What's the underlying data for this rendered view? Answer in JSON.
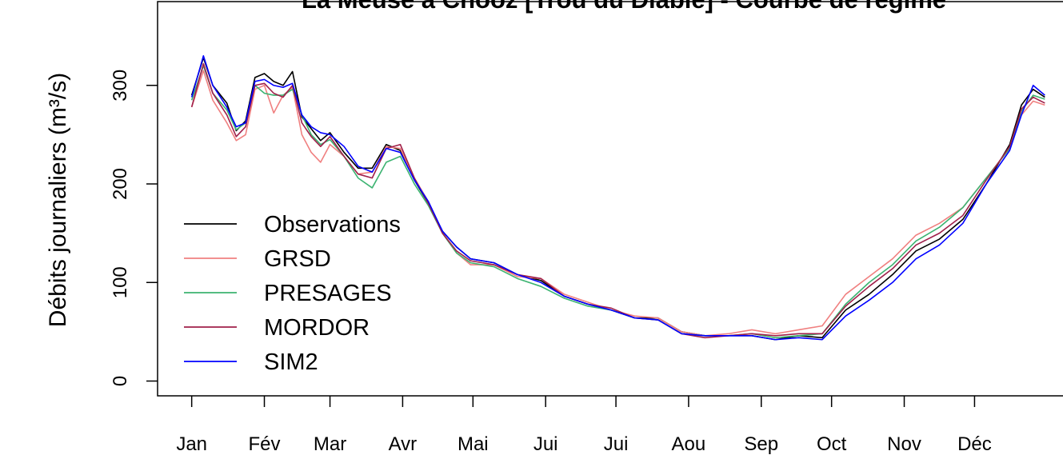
{
  "chart_data": {
    "type": "line",
    "title": "La Meuse à Chooz [Trou du Diable] - Courbe de régime",
    "y_label": "Débits journaliers (m³/s)",
    "x": [
      1,
      6,
      10,
      16,
      20,
      24,
      28,
      32,
      36,
      40,
      44,
      48,
      52,
      56,
      60,
      66,
      72,
      78,
      84,
      90,
      96,
      102,
      108,
      114,
      120,
      130,
      140,
      150,
      160,
      170,
      180,
      190,
      200,
      210,
      220,
      230,
      240,
      250,
      260,
      270,
      280,
      290,
      300,
      310,
      320,
      330,
      340,
      350,
      355,
      360,
      365
    ],
    "series": [
      {
        "name": "Observations",
        "color": "#000000",
        "values": [
          290,
          328,
          300,
          282,
          254,
          264,
          308,
          312,
          304,
          300,
          314,
          268,
          256,
          244,
          252,
          232,
          216,
          216,
          240,
          234,
          204,
          180,
          152,
          136,
          124,
          120,
          108,
          102,
          86,
          78,
          72,
          64,
          64,
          50,
          46,
          46,
          46,
          42,
          46,
          44,
          72,
          88,
          108,
          132,
          144,
          164,
          200,
          240,
          280,
          296,
          288
        ]
      },
      {
        "name": "GRSD",
        "color": "#f08080",
        "values": [
          278,
          315,
          285,
          262,
          244,
          250,
          296,
          300,
          272,
          290,
          298,
          250,
          232,
          222,
          240,
          228,
          210,
          212,
          238,
          236,
          206,
          182,
          150,
          130,
          118,
          118,
          106,
          104,
          88,
          80,
          72,
          66,
          64,
          50,
          46,
          48,
          52,
          48,
          52,
          56,
          88,
          106,
          124,
          148,
          160,
          176,
          206,
          236,
          270,
          284,
          280
        ]
      },
      {
        "name": "PRESAGES",
        "color": "#3cb371",
        "values": [
          285,
          320,
          292,
          275,
          255,
          262,
          300,
          292,
          290,
          290,
          296,
          270,
          250,
          240,
          245,
          228,
          206,
          196,
          222,
          228,
          200,
          178,
          150,
          130,
          120,
          116,
          104,
          96,
          84,
          76,
          72,
          64,
          62,
          48,
          46,
          46,
          48,
          44,
          46,
          48,
          78,
          100,
          118,
          142,
          156,
          176,
          206,
          236,
          274,
          290,
          286
        ]
      },
      {
        "name": "MORDOR",
        "color": "#a0204a",
        "values": [
          278,
          322,
          292,
          270,
          248,
          258,
          300,
          302,
          292,
          288,
          300,
          262,
          248,
          238,
          248,
          228,
          210,
          206,
          236,
          240,
          206,
          180,
          150,
          132,
          122,
          118,
          108,
          104,
          86,
          78,
          74,
          64,
          62,
          48,
          44,
          46,
          48,
          46,
          48,
          48,
          76,
          96,
          114,
          138,
          150,
          168,
          204,
          238,
          276,
          288,
          282
        ]
      },
      {
        "name": "SIM2",
        "color": "#0000ff",
        "values": [
          288,
          330,
          300,
          278,
          258,
          262,
          304,
          306,
          300,
          298,
          302,
          270,
          258,
          252,
          250,
          238,
          218,
          212,
          236,
          232,
          204,
          182,
          152,
          136,
          124,
          120,
          108,
          100,
          86,
          78,
          72,
          64,
          62,
          48,
          46,
          46,
          46,
          42,
          44,
          42,
          66,
          82,
          100,
          124,
          138,
          160,
          200,
          234,
          270,
          300,
          290
        ]
      }
    ],
    "xlim": [
      -13.56,
      379.56
    ],
    "xticks": [
      {
        "value": 1,
        "label": "Jan"
      },
      {
        "value": 32,
        "label": "Fév"
      },
      {
        "value": 60,
        "label": "Mar"
      },
      {
        "value": 91,
        "label": "Avr"
      },
      {
        "value": 121,
        "label": "Mai"
      },
      {
        "value": 152,
        "label": "Jui"
      },
      {
        "value": 182,
        "label": "Jui"
      },
      {
        "value": 213,
        "label": "Aou"
      },
      {
        "value": 244,
        "label": "Sep"
      },
      {
        "value": 274,
        "label": "Oct"
      },
      {
        "value": 305,
        "label": "Nov"
      },
      {
        "value": 335,
        "label": "Déc"
      }
    ],
    "ylim": [
      -15,
      385
    ],
    "yticks": [
      0,
      100,
      200,
      300
    ],
    "legend": "left"
  }
}
